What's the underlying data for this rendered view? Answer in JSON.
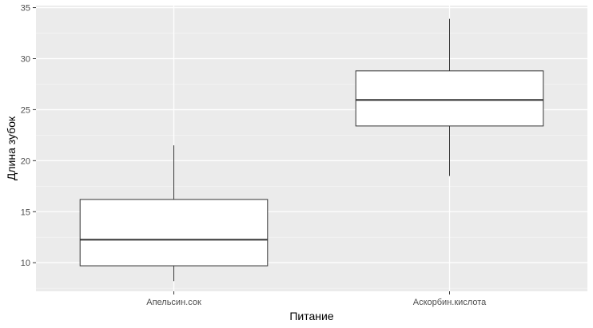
{
  "chart_data": {
    "type": "boxplot",
    "xlabel": "Питание",
    "ylabel": "Длина зубок",
    "ylim": [
      7.2,
      35.2
    ],
    "y_ticks": [
      10,
      15,
      20,
      25,
      30,
      35
    ],
    "y_tick_labels": [
      "10",
      "15",
      "20",
      "25",
      "30",
      "35"
    ],
    "grid": true,
    "categories": [
      "Апельсин.сок",
      "Аскорбин.кислота"
    ],
    "boxes": [
      {
        "category": "Апельсин.сок",
        "whisker_low": 8.2,
        "q1": 9.7,
        "median": 12.25,
        "q3": 16.2,
        "whisker_high": 21.5
      },
      {
        "category": "Аскорбин.кислота",
        "whisker_low": 18.5,
        "q1": 23.4,
        "median": 25.95,
        "q3": 28.8,
        "whisker_high": 33.9
      }
    ],
    "colors": {
      "panel": "#ebebeb",
      "grid_major": "#ffffff",
      "grid_minor": "#f5f5f5",
      "box_fill": "#ffffff",
      "box_line": "#333333"
    }
  }
}
